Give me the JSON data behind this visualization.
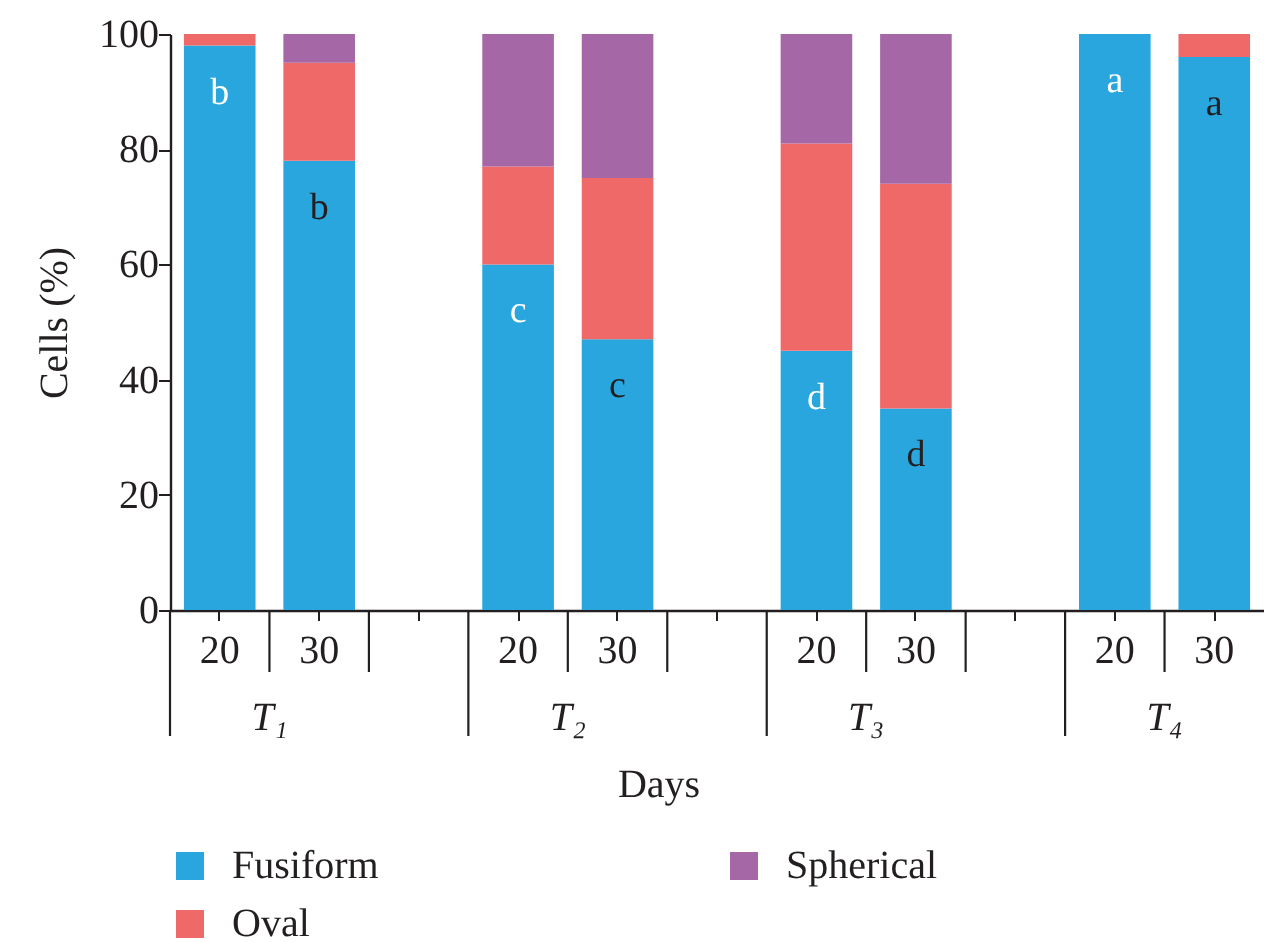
{
  "chart_data": {
    "type": "bar",
    "stacked": true,
    "categories": [
      "20",
      "30",
      null,
      "20",
      "30",
      null,
      "20",
      "30",
      null,
      "20",
      "30"
    ],
    "series": [
      {
        "name": "Fusiform",
        "color": "#29a6de",
        "values": [
          98,
          78,
          null,
          60,
          47,
          null,
          45,
          35,
          null,
          100,
          96
        ]
      },
      {
        "name": "Oval",
        "color": "#f06969",
        "values": [
          2,
          17,
          null,
          17,
          28,
          null,
          36,
          39,
          null,
          0,
          4
        ]
      },
      {
        "name": "Spherical",
        "color": "#a567a5",
        "values": [
          0,
          5,
          null,
          23,
          25,
          null,
          19,
          26,
          null,
          0,
          0
        ]
      }
    ],
    "xlabel": "Days",
    "ylabel": "Cells (%)",
    "ylim": [
      0,
      100
    ],
    "yticks": [
      0,
      20,
      40,
      60,
      80,
      100
    ],
    "legend": "bottom",
    "annotations": [
      "b",
      "b",
      "c",
      "c",
      "d",
      "d",
      "a",
      "a",
      "T₁",
      "T₂",
      "T₃",
      "T₄"
    ]
  }
}
